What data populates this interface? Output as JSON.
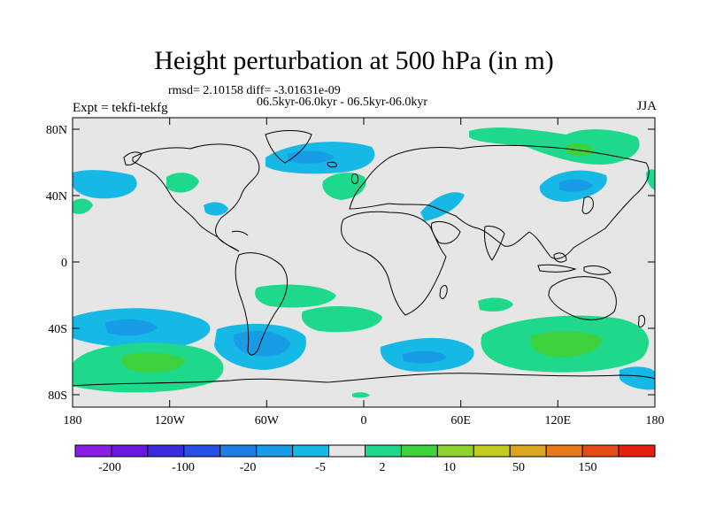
{
  "title": "Height perturbation at 500 hPa (in m)",
  "stats_line": "rmsd= 2.10158 diff= -3.01631e-09",
  "period_line": "06.5kyr-06.0kyr - 06.5kyr-06.0kyr",
  "experiment_label": "Expt = tekfi-tekfg",
  "season_label": "JJA",
  "map": {
    "background_color": "#E6E6E6",
    "lat_labels": [
      "80N",
      "40N",
      "0",
      "40S",
      "80S"
    ],
    "lon_labels": [
      "180",
      "120W",
      "60W",
      "0",
      "60E",
      "120E",
      "180"
    ]
  },
  "colorbar": {
    "colors": [
      "#8B1FE6",
      "#6A16E6",
      "#3A2AE0",
      "#2650E6",
      "#1E7EE6",
      "#199CE6",
      "#16B8E6",
      "#E6E6E6",
      "#1ED98C",
      "#3DD13D",
      "#8ED12A",
      "#C2CC1E",
      "#D9A61E",
      "#E6781E",
      "#E64A16",
      "#E61E10"
    ],
    "labels": [
      "-200",
      "-100",
      "-20",
      "-5",
      "2",
      "10",
      "50",
      "150"
    ]
  }
}
